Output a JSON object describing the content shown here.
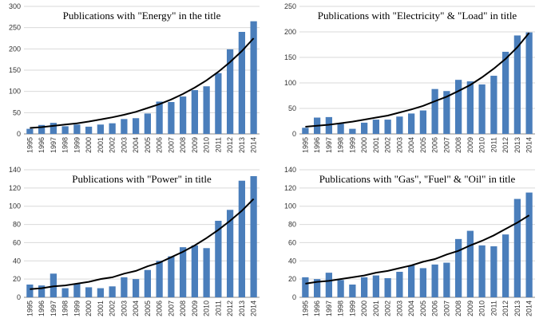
{
  "chart_data": [
    {
      "type": "bar",
      "title": "Publications with \"Energy\" in the title",
      "categories": [
        "1995",
        "1996",
        "1997",
        "1998",
        "1999",
        "2000",
        "2001",
        "2002",
        "2003",
        "2004",
        "2005",
        "2006",
        "2007",
        "2008",
        "2009",
        "2010",
        "2011",
        "2012",
        "2013",
        "2014"
      ],
      "values": [
        12,
        21,
        26,
        18,
        22,
        17,
        22,
        25,
        35,
        37,
        48,
        76,
        75,
        88,
        103,
        112,
        143,
        199,
        240,
        265
      ],
      "trend": [
        14,
        16,
        19,
        22,
        25,
        29,
        34,
        39,
        45,
        52,
        61,
        70,
        81,
        94,
        109,
        126,
        146,
        169,
        195,
        225
      ],
      "color": "#4a7ebb",
      "trend_color": "#000000",
      "ylim": [
        0,
        300
      ],
      "yticks": [
        0,
        50,
        100,
        150,
        200,
        250,
        300
      ],
      "grid": true
    },
    {
      "type": "bar",
      "title": "Publications with \"Electricity\" & \"Load\" in title",
      "categories": [
        "1995",
        "1996",
        "1997",
        "1998",
        "1999",
        "2000",
        "2001",
        "2002",
        "2003",
        "2004",
        "2005",
        "2006",
        "2007",
        "2008",
        "2009",
        "2010",
        "2011",
        "2012",
        "2013",
        "2014"
      ],
      "values": [
        12,
        32,
        33,
        20,
        10,
        22,
        28,
        28,
        34,
        40,
        46,
        88,
        84,
        106,
        103,
        97,
        114,
        161,
        193,
        199
      ],
      "trend": [
        14,
        16,
        18,
        21,
        24,
        28,
        32,
        36,
        42,
        48,
        55,
        64,
        73,
        84,
        96,
        111,
        128,
        147,
        170,
        198
      ],
      "color": "#4a7ebb",
      "trend_color": "#000000",
      "ylim": [
        0,
        250
      ],
      "yticks": [
        0,
        50,
        100,
        150,
        200,
        250
      ],
      "grid": true
    },
    {
      "type": "bar",
      "title": "Publications with \"Power\"  in title",
      "categories": [
        "1995",
        "1996",
        "1997",
        "1998",
        "1999",
        "2000",
        "2001",
        "2002",
        "2003",
        "2004",
        "2005",
        "2006",
        "2007",
        "2008",
        "2009",
        "2010",
        "2011",
        "2012",
        "2013",
        "2014"
      ],
      "values": [
        14,
        13,
        26,
        10,
        15,
        11,
        10,
        12,
        22,
        20,
        30,
        40,
        45,
        55,
        57,
        54,
        84,
        96,
        128,
        133
      ],
      "trend": [
        9,
        10,
        12,
        13,
        15,
        17,
        20,
        22,
        26,
        29,
        34,
        38,
        44,
        50,
        57,
        65,
        74,
        84,
        95,
        108
      ],
      "color": "#4a7ebb",
      "trend_color": "#000000",
      "ylim": [
        0,
        140
      ],
      "yticks": [
        0,
        20,
        40,
        60,
        80,
        100,
        120,
        140
      ],
      "grid": true
    },
    {
      "type": "bar",
      "title": "Publications with \"Gas\", \"Fuel\" & \"Oil\" in title",
      "categories": [
        "1995",
        "1996",
        "1997",
        "1998",
        "1999",
        "2000",
        "2001",
        "2002",
        "2003",
        "2004",
        "2005",
        "2006",
        "2007",
        "2008",
        "2009",
        "2010",
        "2011",
        "2012",
        "2013",
        "2014"
      ],
      "values": [
        22,
        20,
        27,
        19,
        14,
        22,
        24,
        21,
        28,
        35,
        32,
        36,
        38,
        64,
        73,
        57,
        56,
        69,
        108,
        115
      ],
      "trend": [
        15,
        17,
        18,
        20,
        22,
        24,
        27,
        29,
        32,
        35,
        39,
        42,
        47,
        51,
        57,
        62,
        68,
        75,
        82,
        90
      ],
      "color": "#4a7ebb",
      "trend_color": "#000000",
      "ylim": [
        0,
        140
      ],
      "yticks": [
        0,
        20,
        40,
        60,
        80,
        100,
        120,
        140
      ],
      "grid": true
    }
  ]
}
